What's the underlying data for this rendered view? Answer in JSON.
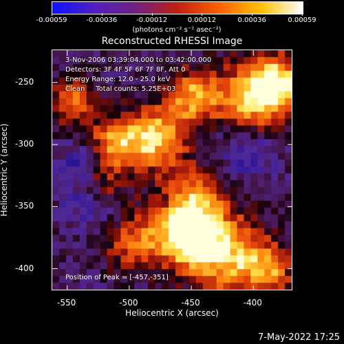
{
  "colorbar": {
    "tick_labels": [
      "-0.00059",
      "-0.00036",
      "-0.00012",
      "0.00012",
      "0.00036",
      "0.00059"
    ],
    "units": "(photons cm⁻² s⁻¹ asec⁻²)",
    "colors": [
      "#1010ff",
      "#5020c0",
      "#702080",
      "#c02010",
      "#ff6000",
      "#ffc000",
      "#ffffff"
    ]
  },
  "chart_data": {
    "type": "heatmap",
    "title": "Reconstructed RHESSI Image",
    "xlabel": "Heliocentric X (arcsec)",
    "ylabel": "Heliocentric Y (arcsec)",
    "xlim": [
      -562,
      -368
    ],
    "ylim": [
      -418,
      -224
    ],
    "x_ticks": [
      "-550",
      "-500",
      "-450",
      "-400"
    ],
    "y_ticks": [
      "-250",
      "-300",
      "-350",
      "-400"
    ],
    "peak": [
      -457,
      -351
    ],
    "value_range": [
      -0.00059,
      0.00059
    ]
  },
  "info": {
    "time_range": "3-Nov-2006 03:39:04.000 to 03:42:00.000",
    "detectors": "Detectors: 3F 4F 5F 6F 7F 8F, Att 0",
    "energy": "Energy Range: 12.0 - 25.0 keV",
    "method": "Clean     Total counts: 5.25E+03",
    "peak_text": "Position of Peak = [-457,-351]"
  },
  "footer": {
    "date": "7-May-2022 17:25"
  }
}
